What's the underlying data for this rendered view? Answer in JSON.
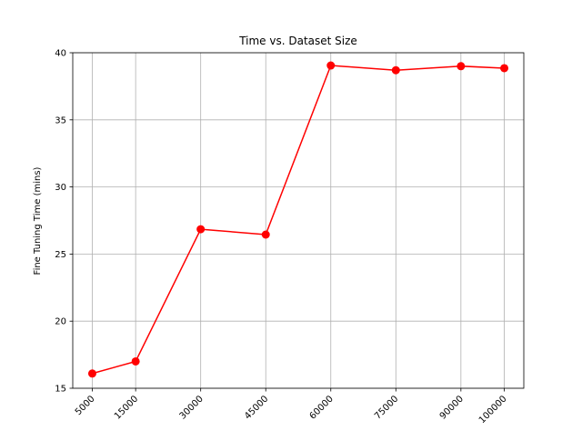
{
  "chart_data": {
    "type": "line",
    "title": "Time vs. Dataset Size",
    "xlabel": "",
    "ylabel": "Fine Tuning Time (mins)",
    "x": [
      5000,
      15000,
      30000,
      45000,
      60000,
      75000,
      90000,
      100000
    ],
    "x_tick_labels": [
      "5000",
      "15000",
      "30000",
      "45000",
      "60000",
      "75000",
      "90000",
      "100000"
    ],
    "series": [
      {
        "values": [
          16.1,
          17.0,
          26.85,
          26.45,
          39.05,
          38.7,
          39.0,
          38.85
        ],
        "color": "#ff0000",
        "marker": "circle"
      }
    ],
    "xlim": [
      500,
      104500
    ],
    "ylim": [
      15,
      40
    ],
    "y_ticks": [
      15,
      20,
      25,
      30,
      35,
      40
    ],
    "y_tick_labels": [
      "15",
      "20",
      "25",
      "30",
      "35",
      "40"
    ],
    "x_tick_rotation": 45,
    "grid": true,
    "legend": "none"
  }
}
